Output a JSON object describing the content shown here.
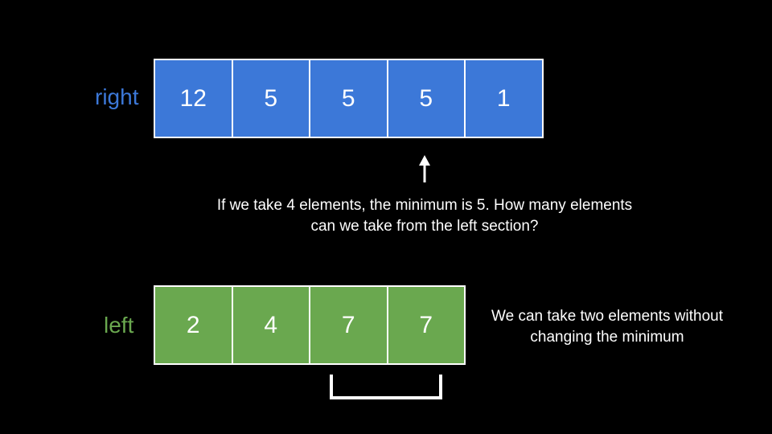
{
  "labels": {
    "right": "right",
    "left": "left"
  },
  "right_array": [
    "12",
    "5",
    "5",
    "5",
    "1"
  ],
  "left_array": [
    "2",
    "4",
    "7",
    "7"
  ],
  "question": "If we take 4 elements, the minimum is 5. How many elements can we take from the left section?",
  "answer": "We can take two elements without changing the minimum",
  "colors": {
    "background": "#000000",
    "right_fill": "#3c78d8",
    "right_label": "#3c78d8",
    "left_fill": "#6aa84f",
    "left_label": "#6aa84f",
    "stroke": "#ffffff"
  }
}
